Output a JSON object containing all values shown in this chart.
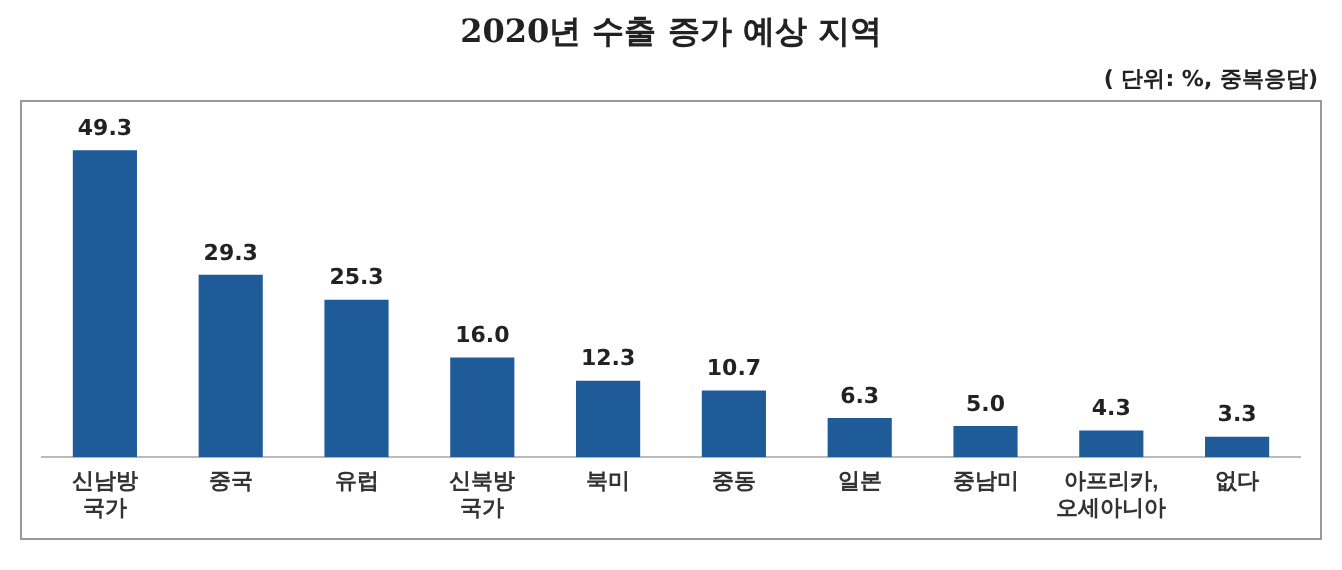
{
  "chart_data": {
    "type": "bar",
    "title": "2020년 수출 증가 예상 지역",
    "subtitle": "( 단위: %, 중복응답)",
    "categories": [
      "신남방 국가",
      "중국",
      "유럽",
      "신북방 국가",
      "북미",
      "중동",
      "일본",
      "중남미",
      "아프리카, 오세아니아",
      "없다"
    ],
    "values": [
      49.3,
      29.3,
      25.3,
      16.0,
      12.3,
      10.7,
      6.3,
      5.0,
      4.3,
      3.3
    ],
    "value_labels": [
      "49.3",
      "29.3",
      "25.3",
      "16.0",
      "12.3",
      "10.7",
      "6.3",
      "5.0",
      "4.3",
      "3.3"
    ],
    "color": "#1f5b99",
    "grid": false,
    "legend": false
  }
}
